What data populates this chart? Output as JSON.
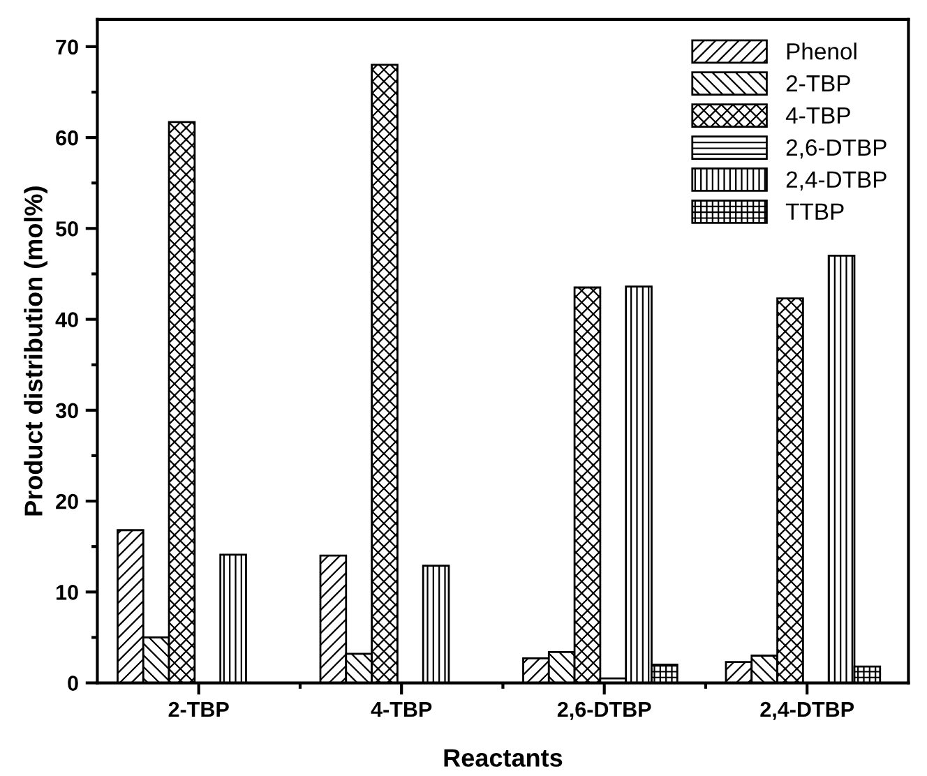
{
  "chart_data": {
    "type": "bar",
    "xlabel": "Reactants",
    "ylabel": "Product distribution (mol%)",
    "categories": [
      "2-TBP",
      "4-TBP",
      "2,6-DTBP",
      "2,4-DTBP"
    ],
    "series": [
      {
        "name": "Phenol",
        "color": "#000000",
        "values": [
          16.8,
          14.0,
          2.7,
          2.3
        ]
      },
      {
        "name": "2-TBP",
        "color": "#000000",
        "values": [
          5.0,
          3.2,
          3.4,
          3.0
        ]
      },
      {
        "name": "4-TBP",
        "color": "#000000",
        "values": [
          61.7,
          68.0,
          43.5,
          42.3
        ]
      },
      {
        "name": "2,6-DTBP",
        "color": "#000000",
        "values": [
          0,
          0,
          0.5,
          0
        ]
      },
      {
        "name": "2,4-DTBP",
        "color": "#000000",
        "values": [
          14.1,
          12.9,
          43.6,
          47.0
        ]
      },
      {
        "name": "TTBP",
        "color": "#000000",
        "values": [
          0,
          0,
          2.0,
          1.8
        ]
      }
    ],
    "ylim": [
      0,
      73
    ],
    "yticks": [
      0,
      10,
      20,
      30,
      40,
      50,
      60,
      70
    ],
    "grid": false,
    "legend": "top right"
  }
}
